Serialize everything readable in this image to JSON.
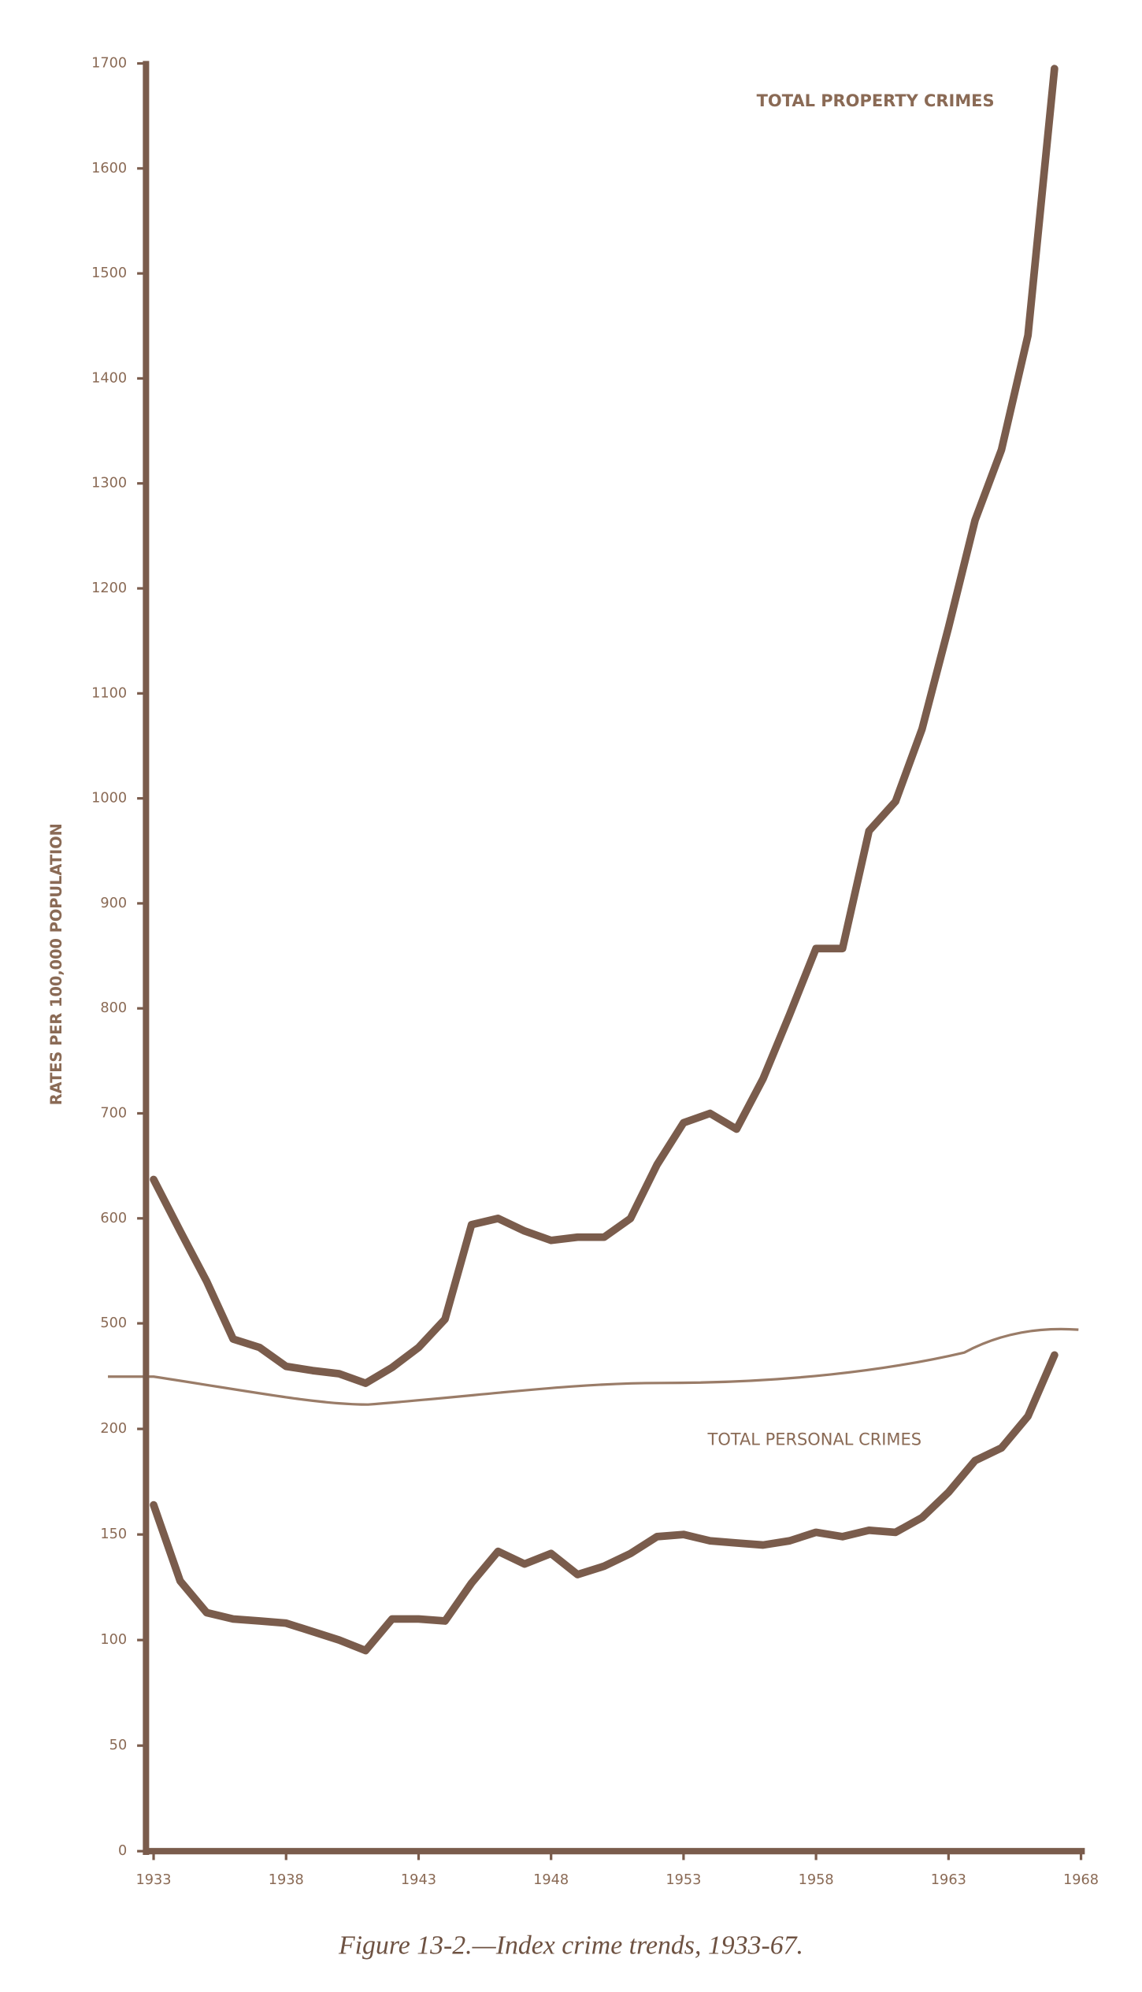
{
  "chart_data": [
    {
      "type": "line",
      "ylabel": "RATES PER 100,000 POPULATION",
      "annotation": "TOTAL PROPERTY CRIMES",
      "x": [
        1933,
        1934,
        1935,
        1936,
        1937,
        1938,
        1939,
        1940,
        1941,
        1942,
        1943,
        1944,
        1945,
        1946,
        1947,
        1948,
        1949,
        1950,
        1951,
        1952,
        1953,
        1954,
        1955,
        1956,
        1957,
        1958,
        1959,
        1960,
        1961,
        1962,
        1963,
        1964,
        1965,
        1966,
        1967
      ],
      "values": [
        637,
        588,
        540,
        485,
        477,
        459,
        455,
        452,
        443,
        458,
        477,
        504,
        594,
        600,
        588,
        579,
        582,
        582,
        600,
        651,
        691,
        700,
        685,
        733,
        794,
        857,
        857,
        969,
        997,
        1066,
        1163,
        1265,
        1332,
        1441,
        1695
      ],
      "color": "#7a5c4c",
      "xlim": [
        1933,
        1968
      ],
      "ylim": [
        500,
        1700
      ],
      "yticks": [
        500,
        600,
        700,
        800,
        900,
        1000,
        1100,
        1200,
        1300,
        1400,
        1500,
        1600,
        1700
      ]
    },
    {
      "type": "line",
      "annotation": "TOTAL PERSONAL CRIMES",
      "x": [
        1933,
        1934,
        1935,
        1936,
        1937,
        1938,
        1939,
        1940,
        1941,
        1942,
        1943,
        1944,
        1945,
        1946,
        1947,
        1948,
        1949,
        1950,
        1951,
        1952,
        1953,
        1954,
        1955,
        1956,
        1957,
        1958,
        1959,
        1960,
        1961,
        1962,
        1963,
        1964,
        1965,
        1966,
        1967
      ],
      "values": [
        164,
        128,
        113,
        110,
        109,
        108,
        104,
        100,
        95,
        110,
        110,
        109,
        127,
        142,
        136,
        141,
        131,
        135,
        141,
        149,
        150,
        147,
        146,
        145,
        147,
        151,
        149,
        152,
        151,
        158,
        170,
        185,
        191,
        206,
        235
      ],
      "color": "#7a5c4c",
      "xlim": [
        1933,
        1968
      ],
      "ylim": [
        0,
        250
      ],
      "xticks": [
        1933,
        1938,
        1943,
        1948,
        1953,
        1958,
        1963,
        1968
      ],
      "yticks": [
        0,
        50,
        100,
        150,
        200
      ]
    }
  ],
  "caption": "Figure 13-2.—Index crime trends, 1933-67."
}
